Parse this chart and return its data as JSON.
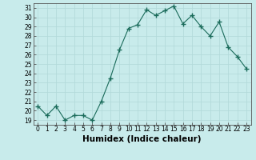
{
  "x": [
    0,
    1,
    2,
    3,
    4,
    5,
    6,
    7,
    8,
    9,
    10,
    11,
    12,
    13,
    14,
    15,
    16,
    17,
    18,
    19,
    20,
    21,
    22,
    23
  ],
  "y": [
    20.5,
    19.5,
    20.5,
    19.0,
    19.5,
    19.5,
    19.0,
    21.0,
    23.5,
    26.5,
    28.8,
    29.2,
    30.8,
    30.2,
    30.7,
    31.2,
    29.3,
    30.2,
    29.0,
    28.0,
    29.5,
    26.8,
    25.8,
    24.5
  ],
  "line_color": "#1a6b5a",
  "marker": "+",
  "marker_size": 4,
  "bg_color": "#c8ebeb",
  "grid_color": "#b0d8d8",
  "xlabel": "Humidex (Indice chaleur)",
  "ylabel_ticks": [
    19,
    20,
    21,
    22,
    23,
    24,
    25,
    26,
    27,
    28,
    29,
    30,
    31
  ],
  "xlim": [
    -0.5,
    23.5
  ],
  "ylim": [
    18.5,
    31.5
  ],
  "xticks": [
    0,
    1,
    2,
    3,
    4,
    5,
    6,
    7,
    8,
    9,
    10,
    11,
    12,
    13,
    14,
    15,
    16,
    17,
    18,
    19,
    20,
    21,
    22,
    23
  ],
  "tick_fontsize": 5.5,
  "label_fontsize": 7.5
}
